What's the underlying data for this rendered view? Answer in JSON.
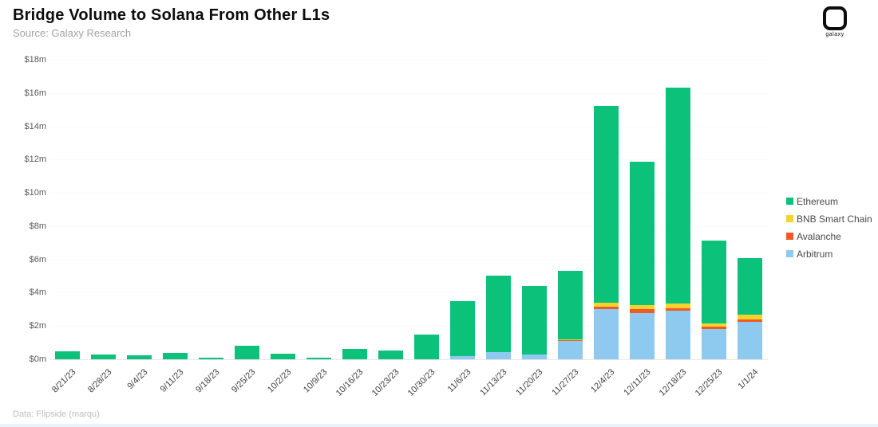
{
  "header": {
    "title": "Bridge Volume to Solana From Other L1s",
    "subtitle": "Source: Galaxy Research",
    "logo_text": "galaxy"
  },
  "footer": {
    "credit": "Data: Flipside (marqu)"
  },
  "colors": {
    "ethereum": "#0cc17a",
    "bnb_smart_chain": "#f5d32c",
    "avalanche": "#f15a24",
    "arbitrum": "#8ec9f0",
    "axis_text": "#595959",
    "tick_text": "#424242"
  },
  "chart_data": {
    "type": "bar",
    "stacked": true,
    "title": "Bridge Volume to Solana From Other L1s",
    "xlabel": "",
    "ylabel": "",
    "ylim": [
      0,
      18
    ],
    "ytick_step": 2,
    "ytick_labels": [
      "$0m",
      "$2m",
      "$4m",
      "$6m",
      "$8m",
      "$10m",
      "$12m",
      "$14m",
      "$16m",
      "$18m"
    ],
    "grid": "faint-horizontal",
    "legend_position": "right",
    "legend_order": [
      "Ethereum",
      "BNB Smart Chain",
      "Avalanche",
      "Arbitrum"
    ],
    "units": "USD millions",
    "categories": [
      "8/21/23",
      "8/28/23",
      "9/4/23",
      "9/11/23",
      "9/18/23",
      "9/25/23",
      "10/2/23",
      "10/9/23",
      "10/16/23",
      "10/23/23",
      "10/30/23",
      "11/6/23",
      "11/13/23",
      "11/20/23",
      "11/27/23",
      "12/4/23",
      "12/11/23",
      "12/18/23",
      "12/25/23",
      "1/1/24"
    ],
    "series": [
      {
        "name": "Arbitrum",
        "color": "#8ec9f0",
        "values": [
          0,
          0,
          0,
          0,
          0,
          0,
          0,
          0,
          0,
          0,
          0,
          0.2,
          0.45,
          0.3,
          1.1,
          3.0,
          2.8,
          2.9,
          1.8,
          2.25
        ]
      },
      {
        "name": "Avalanche",
        "color": "#f15a24",
        "values": [
          0,
          0,
          0,
          0,
          0,
          0,
          0,
          0,
          0,
          0,
          0,
          0,
          0,
          0,
          0.05,
          0.16,
          0.2,
          0.15,
          0.14,
          0.14
        ]
      },
      {
        "name": "BNB Smart Chain",
        "color": "#f5d32c",
        "values": [
          0,
          0,
          0,
          0,
          0,
          0,
          0,
          0,
          0,
          0,
          0,
          0,
          0,
          0,
          0.05,
          0.25,
          0.27,
          0.3,
          0.2,
          0.3
        ]
      },
      {
        "name": "Ethereum",
        "color": "#0cc17a",
        "values": [
          0.5,
          0.3,
          0.25,
          0.4,
          0.1,
          0.8,
          0.35,
          0.12,
          0.6,
          0.55,
          1.5,
          3.3,
          4.6,
          4.1,
          4.1,
          11.8,
          8.6,
          13.0,
          5.0,
          3.4
        ]
      }
    ],
    "totals": [
      0.5,
      0.3,
      0.25,
      0.4,
      0.1,
      0.8,
      0.35,
      0.12,
      0.6,
      0.55,
      1.5,
      3.5,
      5.05,
      4.4,
      5.3,
      15.21,
      11.87,
      16.35,
      7.14,
      6.09
    ]
  }
}
